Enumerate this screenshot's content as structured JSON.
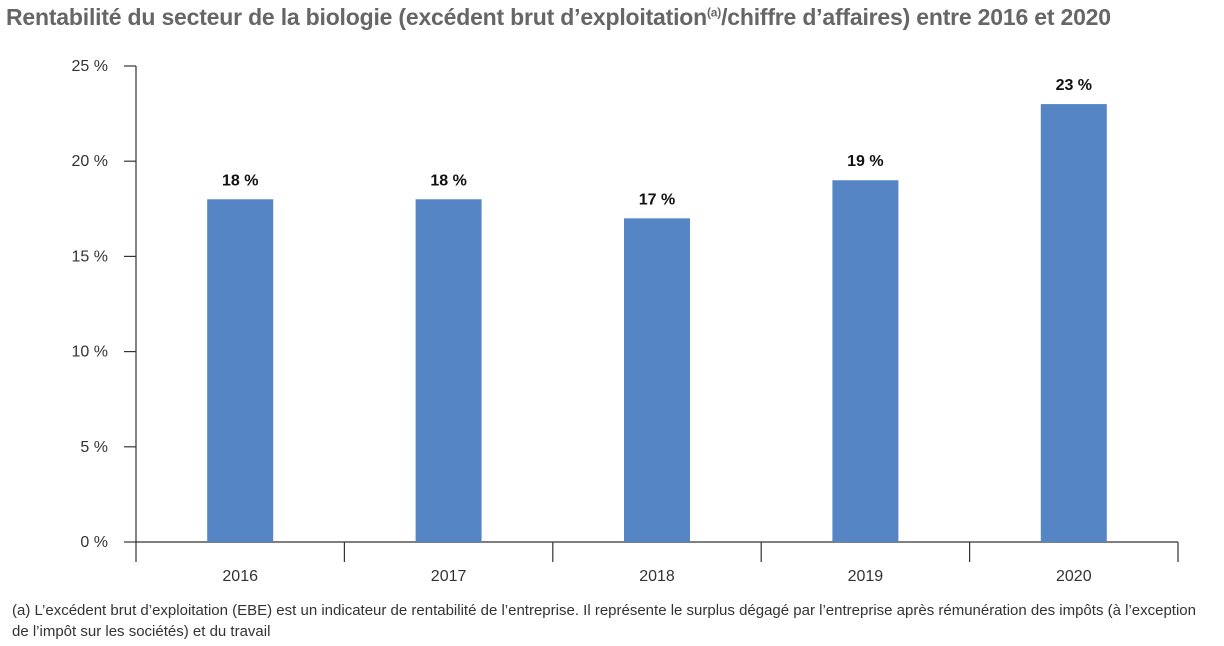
{
  "title": {
    "main": "Rentabilité du secteur de la biologie (excédent brut d’exploitation",
    "sup": "(a)",
    "rest": "/chiffre d’affaires) entre 2016 et 2020"
  },
  "footnote": "(a) L’excédent brut d’exploitation (EBE) est un indicateur de rentabilité de l’entreprise. Il représente le surplus dégagé par l’entreprise après rémunération des impôts (à l’exception de l’impôt sur les sociétés) et du travail",
  "chart_data": {
    "type": "bar",
    "title": "Rentabilité du secteur de la biologie (excédent brut d’exploitation(a)/chiffre d’affaires) entre 2016 et 2020",
    "categories": [
      "2016",
      "2017",
      "2018",
      "2019",
      "2020"
    ],
    "values": [
      18,
      18,
      17,
      19,
      23
    ],
    "data_labels": [
      "18 %",
      "18 %",
      "17 %",
      "19 %",
      "23 %"
    ],
    "xlabel": "",
    "ylabel": "",
    "ylim": [
      0,
      25
    ],
    "yticks": [
      0,
      5,
      10,
      15,
      20,
      25
    ],
    "ytick_labels": [
      "0 %",
      "5 %",
      "10 %",
      "15 %",
      "20 %",
      "25 %"
    ],
    "bar_color": "#5585c5",
    "grid": false,
    "legend": "none"
  }
}
